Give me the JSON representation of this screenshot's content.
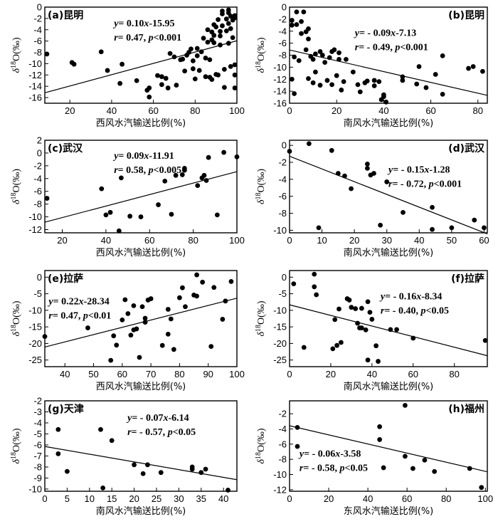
{
  "figure": {
    "ylabel": "δ18O(‰)"
  },
  "chart_data": [
    {
      "type": "scatter",
      "title": "(a)昆明",
      "xlabel": "西风水汽输送比例(%)",
      "ylabel": "δ18O(‰)",
      "xlim": [
        8,
        100
      ],
      "ylim": [
        -17,
        0
      ],
      "xticks": [
        20,
        40,
        60,
        80,
        100
      ],
      "yticks": [
        -16,
        -14,
        -12,
        -10,
        -8,
        -6,
        -4,
        -2,
        0
      ],
      "equation": "y= 0.10x-15.95",
      "stats": "r= 0.47, p<0.001",
      "fit": {
        "slope": 0.1,
        "intercept": -15.95
      },
      "points": [
        [
          9,
          -8.3
        ],
        [
          21,
          -9.8
        ],
        [
          22,
          -10.1
        ],
        [
          35,
          -7.9
        ],
        [
          38,
          -11.2
        ],
        [
          44,
          -13.5
        ],
        [
          45,
          -10.1
        ],
        [
          52,
          -13.0
        ],
        [
          57,
          -14.7
        ],
        [
          58,
          -15.9
        ],
        [
          58,
          -14.3
        ],
        [
          62,
          -12.1
        ],
        [
          64,
          -12.3
        ],
        [
          64,
          -13.7
        ],
        [
          66,
          -12.6
        ],
        [
          67,
          -14.3
        ],
        [
          68,
          -8.2
        ],
        [
          70,
          -8.8
        ],
        [
          71,
          -13.8
        ],
        [
          73,
          -9.3
        ],
        [
          74,
          -9.2
        ],
        [
          75,
          -11.3
        ],
        [
          76,
          -8.5
        ],
        [
          77,
          -8.0
        ],
        [
          78,
          -7.4
        ],
        [
          79,
          -9.5
        ],
        [
          79,
          -10.9
        ],
        [
          80,
          -12.7
        ],
        [
          81,
          -7.3
        ],
        [
          81,
          -8.6
        ],
        [
          82,
          -11.2
        ],
        [
          83,
          -7.9
        ],
        [
          84,
          -5.5
        ],
        [
          85,
          -12.3
        ],
        [
          85,
          -9.0
        ],
        [
          86,
          -6.2
        ],
        [
          86,
          -4.0
        ],
        [
          87,
          -9.3
        ],
        [
          87,
          -12.4
        ],
        [
          88,
          -5.8
        ],
        [
          88,
          -4.4
        ],
        [
          88,
          -12.8
        ],
        [
          89,
          -3.1
        ],
        [
          89,
          -5.0
        ],
        [
          89,
          -6.3
        ],
        [
          90,
          -11.9
        ],
        [
          90,
          -3.5
        ],
        [
          91,
          -2.2
        ],
        [
          91,
          -12.0
        ],
        [
          92,
          -4.3
        ],
        [
          92,
          -5.1
        ],
        [
          92,
          -6.7
        ],
        [
          93,
          -0.7
        ],
        [
          93,
          -3.3
        ],
        [
          93,
          -1.2
        ],
        [
          94,
          -11.0
        ],
        [
          94,
          -14.2
        ],
        [
          95,
          -2.1
        ],
        [
          95,
          -4.2
        ],
        [
          96,
          -1.0
        ],
        [
          96,
          -0.5
        ],
        [
          96,
          -6.4
        ],
        [
          96,
          -2.9
        ],
        [
          97,
          -1.6
        ],
        [
          97,
          -10.5
        ],
        [
          97,
          -3.8
        ],
        [
          98,
          -2.3
        ],
        [
          98,
          -5.4
        ],
        [
          99,
          -1.5
        ],
        [
          99,
          -14.3
        ],
        [
          99,
          -12.0
        ],
        [
          99,
          -1.9
        ],
        [
          99,
          -10.2
        ]
      ]
    },
    {
      "type": "scatter",
      "title": "(b)昆明",
      "xlabel": "南风水汽输送比例(%)",
      "ylabel": "δ18O(‰)",
      "xlim": [
        0,
        84
      ],
      "ylim": [
        -16,
        0
      ],
      "xticks": [
        0,
        20,
        40,
        60,
        80
      ],
      "yticks": [
        -16,
        -14,
        -12,
        -10,
        -8,
        -6,
        -4,
        -2,
        0
      ],
      "equation": "y= - 0.09x-7.13",
      "stats": "r= - 0.49, p<0.001",
      "fit": {
        "slope": -0.09,
        "intercept": -7.13
      },
      "points": [
        [
          1,
          -2.2
        ],
        [
          1,
          -3.0
        ],
        [
          1,
          -12.0
        ],
        [
          2,
          -8.3
        ],
        [
          2,
          -14.4
        ],
        [
          3,
          -0.8
        ],
        [
          3,
          -2.9
        ],
        [
          4,
          -8.9
        ],
        [
          5,
          -4.4
        ],
        [
          5,
          -2.4
        ],
        [
          6,
          -0.8
        ],
        [
          7,
          -4.1
        ],
        [
          7,
          -7.1
        ],
        [
          8,
          -3.6
        ],
        [
          8,
          -5.3
        ],
        [
          8,
          -11.9
        ],
        [
          9,
          -8.2
        ],
        [
          10,
          -12.6
        ],
        [
          10,
          -8.7
        ],
        [
          11,
          -10.8
        ],
        [
          11,
          -7.8
        ],
        [
          13,
          -13.0
        ],
        [
          13,
          -7.4
        ],
        [
          14,
          -8.0
        ],
        [
          15,
          -9.2
        ],
        [
          16,
          -12.2
        ],
        [
          17,
          -8.4
        ],
        [
          18,
          -12.9
        ],
        [
          18,
          -7.4
        ],
        [
          19,
          -7.1
        ],
        [
          20,
          -11.4
        ],
        [
          21,
          -7.6
        ],
        [
          21,
          -8.7
        ],
        [
          22,
          -13.8
        ],
        [
          23,
          -12.4
        ],
        [
          24,
          -8.7
        ],
        [
          27,
          -10.8
        ],
        [
          29,
          -12.9
        ],
        [
          30,
          -14.1
        ],
        [
          32,
          -12.6
        ],
        [
          33,
          -12.3
        ],
        [
          36,
          -13.1
        ],
        [
          36,
          -12.2
        ],
        [
          38,
          -12.4
        ],
        [
          39,
          -15.4
        ],
        [
          40,
          -14.9
        ],
        [
          40,
          -14.6
        ],
        [
          41,
          -15.8
        ],
        [
          48,
          -12.2
        ],
        [
          48,
          -11.6
        ],
        [
          54,
          -12.8
        ],
        [
          55,
          -9.9
        ],
        [
          58,
          -13.4
        ],
        [
          62,
          -11.2
        ],
        [
          65,
          -8.1
        ],
        [
          65,
          -14.5
        ],
        [
          76,
          -10.2
        ],
        [
          78,
          -9.9
        ],
        [
          82,
          -10.7
        ]
      ]
    },
    {
      "type": "scatter",
      "title": "(c)武汉",
      "xlabel": "西风水汽输送比例(%)",
      "ylabel": "δ18O(‰)",
      "xlim": [
        12,
        100
      ],
      "ylim": [
        -12.5,
        2
      ],
      "xticks": [
        20,
        40,
        60,
        80,
        100
      ],
      "yticks": [
        -12,
        -10,
        -8,
        -6,
        -4,
        -2,
        0,
        2
      ],
      "equation": "y= 0.09x-11.91",
      "stats": "r= 0.58, p<0.005",
      "fit": {
        "slope": 0.09,
        "intercept": -11.91
      },
      "points": [
        [
          13,
          -7.1
        ],
        [
          38,
          -5.6
        ],
        [
          40,
          -9.7
        ],
        [
          42,
          -9.3
        ],
        [
          46,
          -12.2
        ],
        [
          47,
          -3.9
        ],
        [
          51,
          -9.9
        ],
        [
          56,
          -10.0
        ],
        [
          64,
          -8.1
        ],
        [
          67,
          -4.4
        ],
        [
          70,
          -9.6
        ],
        [
          72,
          -3.5
        ],
        [
          75,
          -3.4
        ],
        [
          76,
          -2.4
        ],
        [
          76,
          -2.7
        ],
        [
          82,
          -5.1
        ],
        [
          84,
          -3.9
        ],
        [
          85,
          -3.5
        ],
        [
          86,
          -4.3
        ],
        [
          87,
          -0.7
        ],
        [
          91,
          -9.7
        ],
        [
          94,
          0.1
        ],
        [
          100,
          -0.6
        ]
      ]
    },
    {
      "type": "scatter",
      "title": "(d)武汉",
      "xlabel": "南风水汽输送比例(%)",
      "ylabel": "δ18O(‰)",
      "xlim": [
        0,
        61
      ],
      "ylim": [
        -10.3,
        0.6
      ],
      "xticks": [
        0,
        10,
        20,
        30,
        40,
        50,
        60
      ],
      "yticks": [
        -10,
        -8,
        -6,
        -4,
        -2,
        0
      ],
      "equation": "y= - 0.15x-1.28",
      "stats": "r= - 0.72, p<0.001",
      "fit": {
        "slope": -0.15,
        "intercept": -1.28
      },
      "points": [
        [
          0,
          -0.7
        ],
        [
          6,
          0.2
        ],
        [
          9,
          -9.7
        ],
        [
          13,
          -0.6
        ],
        [
          15,
          -3.3
        ],
        [
          17,
          -3.6
        ],
        [
          19,
          -5.1
        ],
        [
          24,
          -2.2
        ],
        [
          24,
          -2.7
        ],
        [
          25,
          -3.5
        ],
        [
          26,
          -3.3
        ],
        [
          28,
          -9.4
        ],
        [
          30,
          -4.3
        ],
        [
          35,
          -7.9
        ],
        [
          44,
          -7.3
        ],
        [
          44,
          -9.9
        ],
        [
          50,
          -9.7
        ],
        [
          57,
          -8.8
        ],
        [
          60,
          -9.7
        ]
      ]
    },
    {
      "type": "scatter",
      "title": "(e)拉萨",
      "xlabel": "西风水汽输送比例(%)",
      "ylabel": "δ18O(‰)",
      "xlim": [
        33,
        100
      ],
      "ylim": [
        -27,
        2
      ],
      "xticks": [
        40,
        50,
        60,
        70,
        80,
        90,
        100
      ],
      "yticks": [
        -25,
        -20,
        -15,
        -10,
        -5,
        0
      ],
      "equation": "y= 0.22x-28.34",
      "stats": "r= 0.47, p<0.01",
      "fit": {
        "slope": 0.22,
        "intercept": -28.34
      },
      "points": [
        [
          33,
          -17.9
        ],
        [
          48,
          -15.3
        ],
        [
          56,
          -25.1
        ],
        [
          57,
          -17.7
        ],
        [
          58,
          -20.5
        ],
        [
          60,
          -12.9
        ],
        [
          61,
          -6.8
        ],
        [
          62,
          -11.0
        ],
        [
          63,
          -17.5
        ],
        [
          64,
          -15.9
        ],
        [
          64,
          -8.6
        ],
        [
          65,
          -15.6
        ],
        [
          66,
          -24.2
        ],
        [
          67,
          -8.9
        ],
        [
          68,
          -12.4
        ],
        [
          68,
          -13.6
        ],
        [
          69,
          -6.9
        ],
        [
          70,
          -6.5
        ],
        [
          74,
          -20.6
        ],
        [
          76,
          -17.2
        ],
        [
          76,
          -9.7
        ],
        [
          77,
          -12.6
        ],
        [
          78,
          -21.8
        ],
        [
          80,
          -6.2
        ],
        [
          81,
          -3.2
        ],
        [
          82,
          -8.9
        ],
        [
          85,
          -5.4
        ],
        [
          86,
          -5.7
        ],
        [
          86,
          0.7
        ],
        [
          88,
          -1.5
        ],
        [
          91,
          -20.9
        ],
        [
          92,
          -3.1
        ],
        [
          95,
          -12.7
        ],
        [
          96,
          -7.2
        ],
        [
          98,
          -1.3
        ]
      ]
    },
    {
      "type": "scatter",
      "title": "(f)拉萨",
      "xlabel": "南风水汽输送比例(%)",
      "ylabel": "δ18O(‰)",
      "xlim": [
        0,
        96
      ],
      "ylim": [
        -27,
        2
      ],
      "xticks": [
        0,
        20,
        40,
        60,
        80
      ],
      "yticks": [
        -25,
        -20,
        -15,
        -10,
        -5,
        0
      ],
      "equation": "y= - 0.16x-8.34",
      "stats": "r= - 0.40, p<0.05",
      "fit": {
        "slope": -0.16,
        "intercept": -8.34
      },
      "points": [
        [
          2,
          -2.0
        ],
        [
          7,
          -21.2
        ],
        [
          12,
          0.9
        ],
        [
          12,
          -2.9
        ],
        [
          13,
          -5.3
        ],
        [
          21,
          -21.6
        ],
        [
          22,
          -12.8
        ],
        [
          23,
          -20.6
        ],
        [
          24,
          -9.6
        ],
        [
          25,
          -19.7
        ],
        [
          28,
          -6.5
        ],
        [
          29,
          -6.9
        ],
        [
          30,
          -9.1
        ],
        [
          32,
          -9.5
        ],
        [
          33,
          -13.9
        ],
        [
          34,
          -15.3
        ],
        [
          35,
          -9.4
        ],
        [
          35,
          -15.3
        ],
        [
          37,
          -15.9
        ],
        [
          38,
          -25.0
        ],
        [
          38,
          -7.4
        ],
        [
          39,
          -10.6
        ],
        [
          40,
          -12.7
        ],
        [
          42,
          -20.7
        ],
        [
          43,
          -25.4
        ],
        [
          49,
          -15.8
        ],
        [
          52,
          -15.8
        ],
        [
          60,
          -18.4
        ],
        [
          95,
          -19.1
        ]
      ]
    },
    {
      "type": "scatter",
      "title": "(g)天津",
      "xlabel": "南风水汽输送比例(%)",
      "ylabel": "δ18O(‰)",
      "xlim": [
        0,
        43
      ],
      "ylim": [
        -10.2,
        -2
      ],
      "xticks": [
        0,
        5,
        10,
        15,
        20,
        25,
        30,
        35,
        40
      ],
      "yticks": [
        -10,
        -9,
        -8,
        -7,
        -6,
        -5,
        -4,
        -3,
        -2
      ],
      "equation": "y= - 0.07x-6.14",
      "stats": "r= - 0.57, p<0.05",
      "fit": {
        "slope": -0.07,
        "intercept": -6.14
      },
      "points": [
        [
          3,
          -4.6
        ],
        [
          3,
          -6.8
        ],
        [
          5,
          -8.4
        ],
        [
          12.5,
          -4.6
        ],
        [
          13,
          -9.9
        ],
        [
          15,
          -5.6
        ],
        [
          20,
          -7.8
        ],
        [
          22,
          -8.6
        ],
        [
          23,
          -7.8
        ],
        [
          26,
          -8.5
        ],
        [
          33,
          -8.0
        ],
        [
          33,
          -8.2
        ],
        [
          35,
          -8.5
        ],
        [
          36,
          -8.2
        ],
        [
          41,
          -10.1
        ]
      ]
    },
    {
      "type": "scatter",
      "title": "(h)福州",
      "xlabel": "东风水汽输送比例(%)",
      "ylabel": "δ18O(‰)",
      "xlim": [
        0,
        101
      ],
      "ylim": [
        -12.2,
        -0.3
      ],
      "xticks": [
        0,
        20,
        40,
        60,
        80,
        100
      ],
      "yticks": [
        -12,
        -10,
        -8,
        -6,
        -4,
        -2
      ],
      "equation": "y= - 0.06x-3.58",
      "stats": "r= - 0.58, p<0.05",
      "fit": {
        "slope": -0.06,
        "intercept": -3.58
      },
      "points": [
        [
          4,
          -3.8
        ],
        [
          4,
          -6.3
        ],
        [
          46,
          -3.7
        ],
        [
          46,
          -5.4
        ],
        [
          48,
          -9.1
        ],
        [
          59,
          -0.9
        ],
        [
          59,
          -7.6
        ],
        [
          63,
          -9.2
        ],
        [
          69,
          -8.1
        ],
        [
          74,
          -9.6
        ],
        [
          92,
          -9.2
        ],
        [
          98,
          -11.7
        ]
      ]
    }
  ]
}
